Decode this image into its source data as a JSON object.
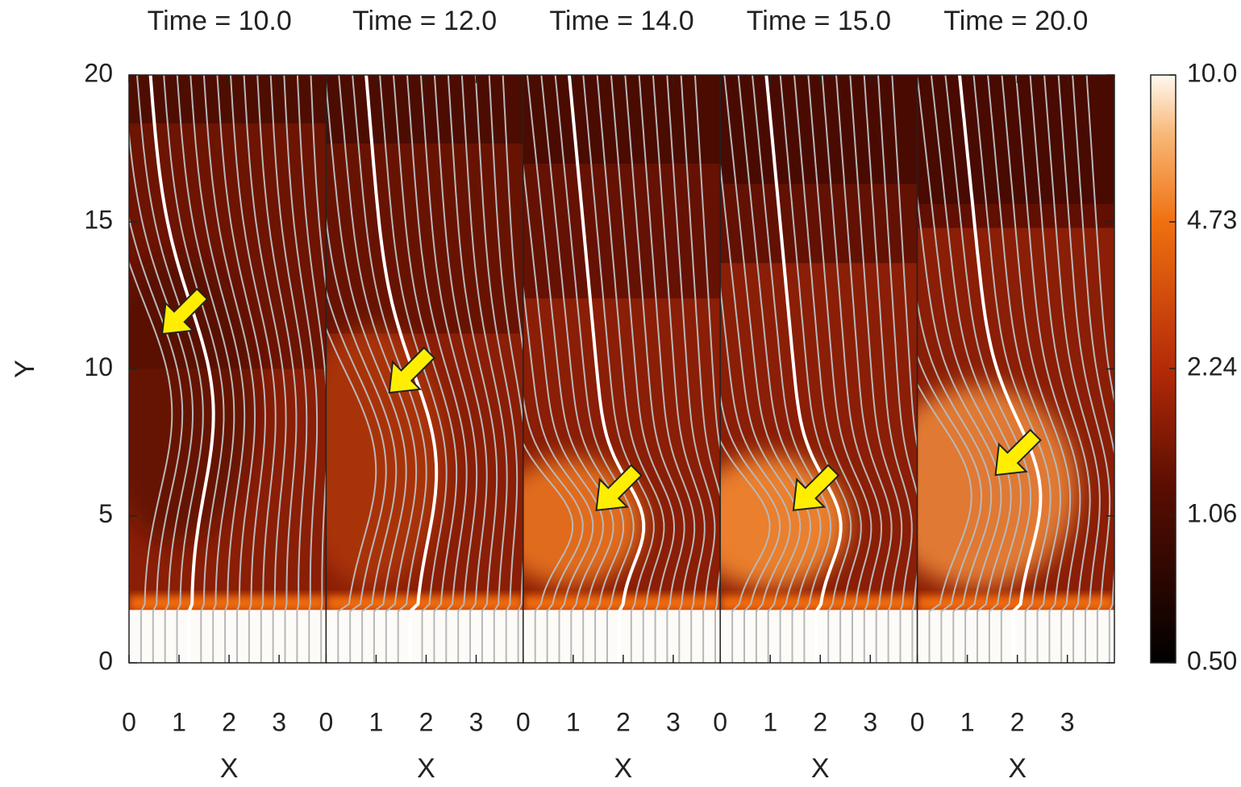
{
  "chart_data": {
    "type": "heatmap",
    "ylabel": "Y",
    "ylim": [
      0,
      20
    ],
    "yticks": [
      0,
      5,
      10,
      15,
      20
    ],
    "xlim": [
      0,
      3.94
    ],
    "panels": [
      {
        "title": "Time = 10.0",
        "xlabel": "X",
        "xticks": [
          0,
          1,
          2,
          3
        ]
      },
      {
        "title": "Time = 12.0",
        "xlabel": "X",
        "xticks": [
          0,
          1,
          2,
          3
        ]
      },
      {
        "title": "Time = 14.0",
        "xlabel": "X",
        "xticks": [
          0,
          1,
          2,
          3
        ]
      },
      {
        "title": "Time = 15.0",
        "xlabel": "X",
        "xticks": [
          0,
          1,
          2,
          3
        ]
      },
      {
        "title": "Time = 20.0",
        "xlabel": "X",
        "xticks": [
          0,
          1,
          2,
          3
        ]
      }
    ],
    "colorbar": {
      "scale": "log",
      "lim": [
        0.5,
        10
      ],
      "ticks": [
        {
          "value": 0.5,
          "label": "0.50"
        },
        1.06,
        2.24,
        4.73,
        {
          "value": 10,
          "label": "10.0"
        }
      ]
    }
  }
}
